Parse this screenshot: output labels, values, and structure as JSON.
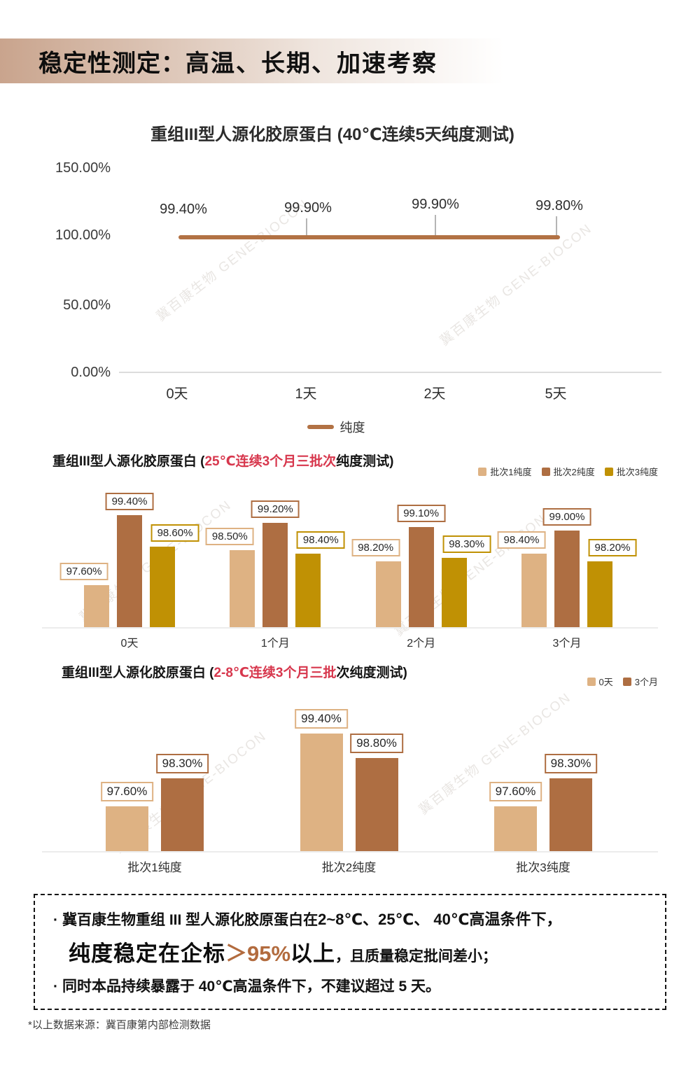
{
  "header": {
    "title_strong": "稳定性测定：",
    "title_rest": "高温、长期、加速考察"
  },
  "watermark": "冀百康生物 GENE-BIOCON",
  "colors": {
    "banner_from": "#C9A48D",
    "title_red": "#D7374D",
    "statement_highlight": "#B26B3E"
  },
  "chart_data": [
    {
      "type": "line",
      "title": "重组III型人源化胶原蛋白 (40℃连续5天纯度测试)",
      "categories": [
        "0天",
        "1天",
        "2天",
        "5天"
      ],
      "series": [
        {
          "name": "纯度",
          "values": [
            99.4,
            99.9,
            99.9,
            99.8
          ]
        }
      ],
      "point_labels": [
        "99.40%",
        "99.90%",
        "99.90%",
        "99.80%"
      ],
      "y_ticks": [
        "150.00%",
        "100.00%",
        "50.00%",
        "0.00%"
      ],
      "ylim": [
        0,
        150
      ],
      "legend": [
        "纯度"
      ],
      "legend_position": "bottom",
      "line_color": "#B27244",
      "grid": false
    },
    {
      "type": "bar",
      "title_prefix": "重组III型人源化胶原蛋白 (",
      "title_highlight": "25℃连续3个月三批次",
      "title_suffix": "纯度测试)",
      "categories": [
        "0天",
        "1个月",
        "2个月",
        "3个月"
      ],
      "series": [
        {
          "name": "批次1纯度",
          "color": "#DEB283",
          "values": [
            97.6,
            98.5,
            98.2,
            98.4
          ],
          "labels": [
            "97.60%",
            "98.50%",
            "98.20%",
            "98.40%"
          ]
        },
        {
          "name": "批次2纯度",
          "color": "#AE6E42",
          "values": [
            99.4,
            99.2,
            99.1,
            99.0
          ],
          "labels": [
            "99.40%",
            "99.20%",
            "99.10%",
            "99.00%"
          ]
        },
        {
          "name": "批次3纯度",
          "color": "#C09104",
          "values": [
            98.6,
            98.4,
            98.3,
            98.2
          ],
          "labels": [
            "98.60%",
            "98.40%",
            "98.30%",
            "98.20%"
          ]
        }
      ],
      "baseline": 96.5,
      "legend_position": "top-right",
      "grid": false
    },
    {
      "type": "bar",
      "title_prefix": "重组III型人源化胶原蛋白 (",
      "title_highlight": "2-8℃连续3个月三批",
      "title_suffix": "次纯度测试)",
      "categories": [
        "批次1纯度",
        "批次2纯度",
        "批次3纯度"
      ],
      "series": [
        {
          "name": "0天",
          "color": "#DEB283",
          "values": [
            97.6,
            99.4,
            97.6
          ],
          "labels": [
            "97.60%",
            "99.40%",
            "97.60%"
          ]
        },
        {
          "name": "3个月",
          "color": "#AE6E42",
          "values": [
            98.3,
            98.8,
            98.3
          ],
          "labels": [
            "98.30%",
            "98.80%",
            "98.30%"
          ]
        }
      ],
      "baseline": 96.5,
      "legend_position": "top-right",
      "grid": false
    }
  ],
  "statement": {
    "bullet": "·",
    "line1_normal": "冀百康生物重组 III 型人源化胶原蛋白在",
    "line1_bold": "2~8℃、25℃、 40℃高温条件下，",
    "line2_big_prefix": "纯度稳定在企标",
    "line2_highlight": "＞95%",
    "line2_big_suffix": "以上",
    "line2_small": "，且质量稳定批间差小；",
    "line3": "同时本品持续暴露于 40℃高温条件下，不建议超过 5 天。"
  },
  "footnote": "*以上数据来源：冀百康第内部检测数据"
}
